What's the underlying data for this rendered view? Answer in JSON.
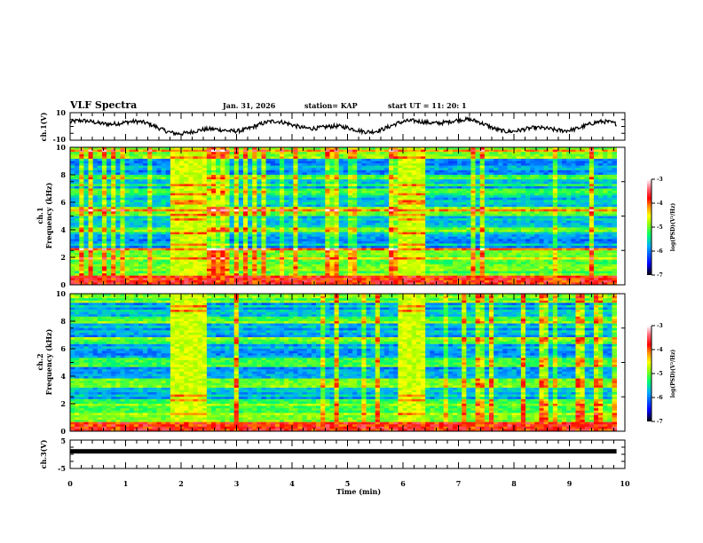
{
  "header": {
    "title": "VLF Spectra",
    "date": "Jan. 31, 2026",
    "station": "station= KAP",
    "start": "start  UT =   11: 20: 1"
  },
  "chart_data": [
    {
      "type": "line",
      "id": "ch1-voltage",
      "ylabel": "ch.1(V)",
      "ylim": [
        -10,
        10
      ],
      "yticks": [
        "10",
        "-10"
      ],
      "xlim": [
        0,
        10
      ],
      "data_end_min": 9.85,
      "description_values": "noisy waveform roughly between -6 and 6 V",
      "color": "#000000"
    },
    {
      "type": "heatmap",
      "id": "ch1-spectrogram",
      "ylabel": "Frequency (kHz)",
      "channel_label": "ch.1",
      "ylim": [
        0,
        10
      ],
      "yticks": [
        "0",
        "2",
        "4",
        "6",
        "8",
        "10"
      ],
      "xlim": [
        0,
        10
      ],
      "bursts_min": [
        [
          1.8,
          2.45
        ],
        [
          5.9,
          6.4
        ]
      ],
      "quiet_bands_khz": [
        [
          2.6,
          3.8
        ],
        [
          4.2,
          5.2
        ],
        [
          5.6,
          6.6
        ],
        [
          7.0,
          7.6
        ],
        [
          8.0,
          9.2
        ]
      ],
      "colorbar": {
        "label": "log(PSD)(V²/Hz)",
        "ticks": [
          "-3",
          "-4",
          "-5",
          "-6",
          "-7"
        ],
        "range": [
          -7,
          -3
        ]
      }
    },
    {
      "type": "heatmap",
      "id": "ch2-spectrogram",
      "ylabel": "Frequency (kHz)",
      "channel_label": "ch.2",
      "ylim": [
        0,
        10
      ],
      "yticks": [
        "0",
        "2",
        "4",
        "6",
        "8",
        "10"
      ],
      "xlim": [
        0,
        10
      ],
      "bursts_min": [
        [
          1.8,
          2.45
        ],
        [
          5.9,
          6.4
        ]
      ],
      "quiet_bands_khz": [
        [
          2.2,
          3.2
        ],
        [
          3.8,
          4.6
        ],
        [
          5.4,
          6.4
        ],
        [
          6.8,
          7.8
        ],
        [
          8.4,
          9.4
        ]
      ],
      "colorbar": {
        "label": "log(PSD)(V²/Hz)",
        "ticks": [
          "-3",
          "-4",
          "-5",
          "-6",
          "-7"
        ],
        "range": [
          -7,
          -3
        ]
      }
    },
    {
      "type": "line",
      "id": "ch3-voltage",
      "ylabel": "ch.3(V)",
      "ylim": [
        -5,
        5
      ],
      "yticks": [
        "5",
        "-5"
      ],
      "xlim": [
        0,
        10
      ],
      "data_end_min": 9.85,
      "level_v": 1.2,
      "color": "#000000"
    }
  ],
  "xaxis": {
    "label": "Time  (min)",
    "ticks": [
      "0",
      "1",
      "2",
      "3",
      "4",
      "5",
      "6",
      "7",
      "8",
      "9",
      "10"
    ]
  }
}
